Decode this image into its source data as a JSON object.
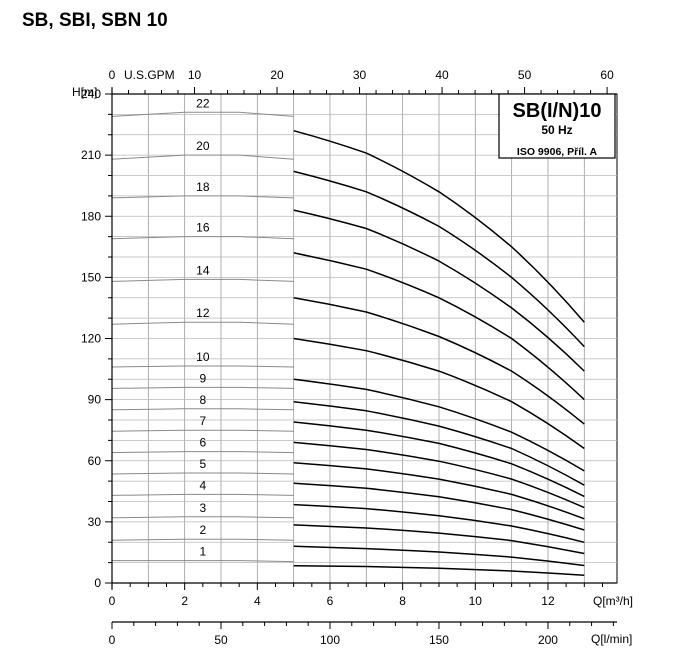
{
  "heading": "SB, SBI, SBN 10",
  "chart_data": {
    "type": "line",
    "title": "SB(I/N)10",
    "subtitle": "50 Hz",
    "note": "ISO 9906, Příl. A",
    "ylabel": "H[m]",
    "xlabel": "Q[m³/h]",
    "x2label": "Q[l/min]",
    "x3label": "U.S.GPM",
    "ylim": [
      0,
      240
    ],
    "xlim": [
      0,
      13.9
    ],
    "yticks": [
      0,
      30,
      60,
      90,
      120,
      150,
      180,
      210,
      240
    ],
    "xticks": [
      0,
      2,
      4,
      6,
      8,
      10,
      12
    ],
    "lmin_ticks": [
      0,
      50,
      100,
      150,
      200
    ],
    "gpm_ticks": [
      0,
      10,
      20,
      30,
      40,
      50,
      60
    ],
    "grid": true,
    "curve_label_x": 2.5,
    "series": [
      {
        "name": "1",
        "faint_h": [
          11,
          11,
          11,
          10.5
        ],
        "bold": [
          [
            5,
            8.5
          ],
          [
            7,
            8.1
          ],
          [
            9,
            7.2
          ],
          [
            11,
            5.9
          ],
          [
            13,
            3.8
          ]
        ]
      },
      {
        "name": "2",
        "faint_h": [
          21,
          21.5,
          21.5,
          21
        ],
        "bold": [
          [
            5,
            18
          ],
          [
            7,
            16.9
          ],
          [
            9,
            15.2
          ],
          [
            11,
            12.7
          ],
          [
            13,
            8.6
          ]
        ]
      },
      {
        "name": "3",
        "faint_h": [
          32,
          32.5,
          32.5,
          32
        ],
        "bold": [
          [
            5,
            28.5
          ],
          [
            7,
            27
          ],
          [
            9,
            24.5
          ],
          [
            11,
            20.8
          ],
          [
            13,
            14.5
          ]
        ]
      },
      {
        "name": "4",
        "faint_h": [
          43,
          43.5,
          43.5,
          43
        ],
        "bold": [
          [
            5,
            38.5
          ],
          [
            7,
            36.5
          ],
          [
            9,
            33
          ],
          [
            11,
            28
          ],
          [
            13,
            20
          ]
        ]
      },
      {
        "name": "5",
        "faint_h": [
          53.5,
          54,
          54,
          53.5
        ],
        "bold": [
          [
            5,
            49
          ],
          [
            7,
            46.5
          ],
          [
            9,
            42.3
          ],
          [
            11,
            36
          ],
          [
            13,
            26
          ]
        ]
      },
      {
        "name": "6",
        "faint_h": [
          64,
          64.5,
          64.5,
          64
        ],
        "bold": [
          [
            5,
            59
          ],
          [
            7,
            56
          ],
          [
            9,
            51
          ],
          [
            11,
            43.5
          ],
          [
            13,
            31.5
          ]
        ]
      },
      {
        "name": "7",
        "faint_h": [
          74.5,
          75,
          75,
          74.5
        ],
        "bold": [
          [
            5,
            69
          ],
          [
            7,
            65.5
          ],
          [
            9,
            59.8
          ],
          [
            11,
            51
          ],
          [
            13,
            37
          ]
        ]
      },
      {
        "name": "8",
        "faint_h": [
          85,
          85.5,
          85.5,
          85
        ],
        "bold": [
          [
            5,
            79
          ],
          [
            7,
            75
          ],
          [
            9,
            68.5
          ],
          [
            11,
            58.5
          ],
          [
            13,
            42.5
          ]
        ]
      },
      {
        "name": "9",
        "faint_h": [
          95.5,
          96,
          96,
          95.5
        ],
        "bold": [
          [
            5,
            89
          ],
          [
            7,
            84.5
          ],
          [
            9,
            77
          ],
          [
            11,
            66
          ],
          [
            13,
            48
          ]
        ]
      },
      {
        "name": "10",
        "faint_h": [
          106,
          106.5,
          106.5,
          106
        ],
        "bold": [
          [
            5,
            100
          ],
          [
            7,
            95
          ],
          [
            9,
            86.5
          ],
          [
            11,
            74
          ],
          [
            13,
            55
          ]
        ]
      },
      {
        "name": "12",
        "faint_h": [
          127,
          128,
          128,
          127
        ],
        "bold": [
          [
            5,
            120
          ],
          [
            7,
            114
          ],
          [
            9,
            104
          ],
          [
            11,
            89
          ],
          [
            13,
            66
          ]
        ]
      },
      {
        "name": "14",
        "faint_h": [
          148,
          149,
          149,
          148
        ],
        "bold": [
          [
            5,
            140
          ],
          [
            7,
            133
          ],
          [
            9,
            121
          ],
          [
            11,
            104
          ],
          [
            13,
            78
          ]
        ]
      },
      {
        "name": "16",
        "faint_h": [
          169,
          170,
          170,
          169
        ],
        "bold": [
          [
            5,
            162
          ],
          [
            7,
            154
          ],
          [
            9,
            140
          ],
          [
            11,
            120
          ],
          [
            13,
            90
          ]
        ]
      },
      {
        "name": "18",
        "faint_h": [
          189,
          190,
          190,
          189
        ],
        "bold": [
          [
            5,
            183
          ],
          [
            7,
            174
          ],
          [
            9,
            158
          ],
          [
            11,
            135
          ],
          [
            13,
            104
          ]
        ]
      },
      {
        "name": "20",
        "faint_h": [
          208,
          210,
          210,
          208
        ],
        "bold": [
          [
            5,
            202
          ],
          [
            7,
            192
          ],
          [
            9,
            175
          ],
          [
            11,
            150
          ],
          [
            13,
            116
          ]
        ]
      },
      {
        "name": "22",
        "faint_h": [
          229,
          231,
          231,
          229
        ],
        "bold": [
          [
            5,
            222
          ],
          [
            7,
            211
          ],
          [
            9,
            192
          ],
          [
            11,
            165
          ],
          [
            13,
            128
          ]
        ]
      }
    ]
  }
}
